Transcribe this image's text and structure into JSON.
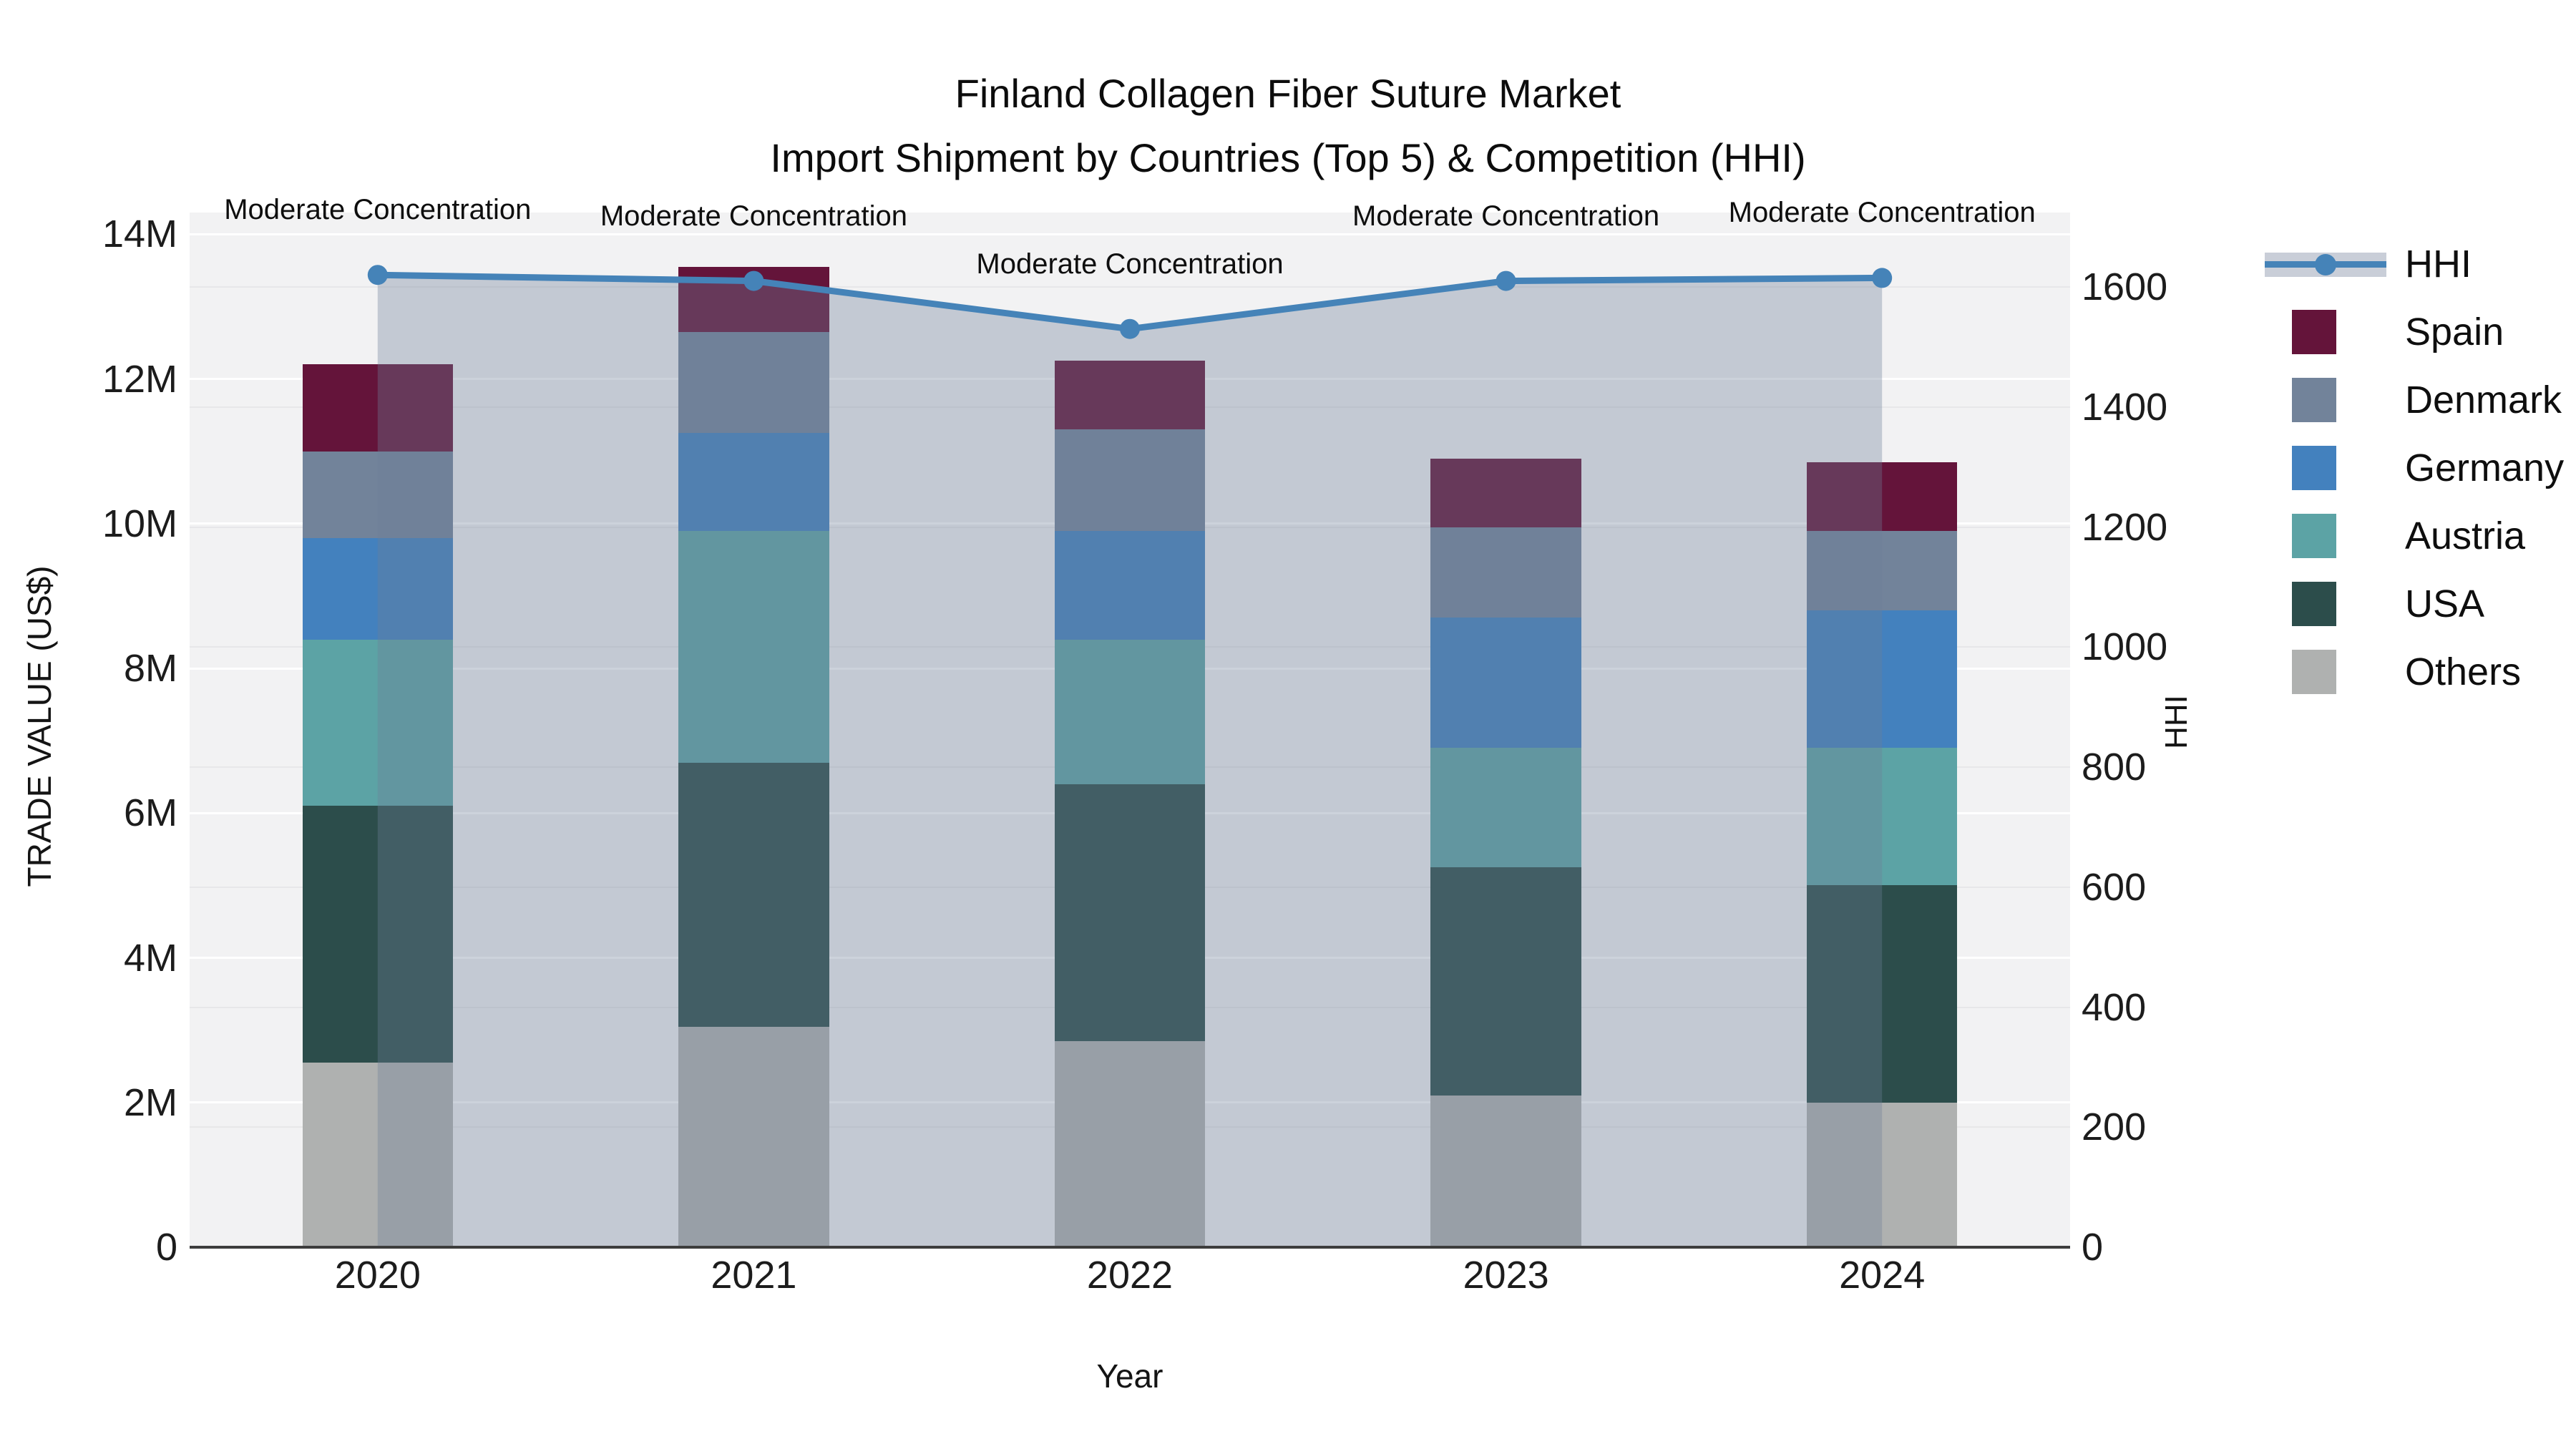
{
  "title": {
    "line1": "Finland Collagen Fiber Suture Market",
    "line2": "Import Shipment by Countries (Top 5) & Competition (HHI)"
  },
  "axes": {
    "x": {
      "title": "Year",
      "ticks": [
        "2020",
        "2021",
        "2022",
        "2023",
        "2024"
      ]
    },
    "y_left": {
      "title": "TRADE VALUE (US$)",
      "ticks": [
        {
          "label": "0",
          "value": 0
        },
        {
          "label": "2M",
          "value": 2
        },
        {
          "label": "4M",
          "value": 4
        },
        {
          "label": "6M",
          "value": 6
        },
        {
          "label": "8M",
          "value": 8
        },
        {
          "label": "10M",
          "value": 10
        },
        {
          "label": "12M",
          "value": 12
        },
        {
          "label": "14M",
          "value": 14
        }
      ]
    },
    "y_right": {
      "title": "HHI",
      "ticks": [
        {
          "label": "0",
          "value": 0
        },
        {
          "label": "200",
          "value": 200
        },
        {
          "label": "400",
          "value": 400
        },
        {
          "label": "600",
          "value": 600
        },
        {
          "label": "800",
          "value": 800
        },
        {
          "label": "1000",
          "value": 1000
        },
        {
          "label": "1200",
          "value": 1200
        },
        {
          "label": "1400",
          "value": 1400
        },
        {
          "label": "1600",
          "value": 1600
        }
      ]
    }
  },
  "legend": {
    "items": [
      {
        "id": "hhi",
        "label": "HHI",
        "kind": "line"
      },
      {
        "id": "spain",
        "label": "Spain",
        "kind": "swatch"
      },
      {
        "id": "denmark",
        "label": "Denmark",
        "kind": "swatch"
      },
      {
        "id": "germany",
        "label": "Germany",
        "kind": "swatch"
      },
      {
        "id": "austria",
        "label": "Austria",
        "kind": "swatch"
      },
      {
        "id": "usa",
        "label": "USA",
        "kind": "swatch"
      },
      {
        "id": "others",
        "label": "Others",
        "kind": "swatch"
      }
    ]
  },
  "colors": {
    "spain": "#64143A",
    "denmark": "#72839A",
    "germany": "#4381BE",
    "austria": "#5CA3A5",
    "usa": "#2C4D4B",
    "others": "#AFB1B0",
    "hhi_line": "#4583B8",
    "hhi_fill": "rgba(110,125,152,0.35)",
    "legend_band": "#C9CED8",
    "plot_bg": "#F2F2F3",
    "axis_line": "#3d3d3d"
  },
  "chart_data": {
    "type": "bar",
    "subtype": "stacked-bars-with-hhi-line",
    "title": "Finland Collagen Fiber Suture Market — Import Shipment by Countries (Top 5) & Competition (HHI)",
    "categories": [
      "2020",
      "2021",
      "2022",
      "2023",
      "2024"
    ],
    "bar_value_unit": "USD millions",
    "series": [
      {
        "name": "Others",
        "color_id": "others",
        "values": [
          2.55,
          3.05,
          2.85,
          2.1,
          2.0
        ]
      },
      {
        "name": "USA",
        "color_id": "usa",
        "values": [
          3.55,
          3.65,
          3.55,
          3.15,
          3.0
        ]
      },
      {
        "name": "Austria",
        "color_id": "austria",
        "values": [
          2.3,
          3.2,
          2.0,
          1.65,
          1.9
        ]
      },
      {
        "name": "Germany",
        "color_id": "germany",
        "values": [
          1.4,
          1.35,
          1.5,
          1.8,
          1.9
        ]
      },
      {
        "name": "Denmark",
        "color_id": "denmark",
        "values": [
          1.2,
          1.4,
          1.4,
          1.25,
          1.1
        ]
      },
      {
        "name": "Spain",
        "color_id": "spain",
        "values": [
          1.2,
          0.9,
          0.95,
          0.95,
          0.95
        ]
      }
    ],
    "bar_totals": [
      12.2,
      13.55,
      12.25,
      10.9,
      10.85
    ],
    "line": {
      "name": "HHI",
      "yaxis": "right",
      "values": [
        1620,
        1610,
        1530,
        1610,
        1615
      ]
    },
    "annotations": [
      {
        "category": "2020",
        "text": "Moderate Concentration"
      },
      {
        "category": "2021",
        "text": "Moderate Concentration"
      },
      {
        "category": "2022",
        "text": "Moderate Concentration"
      },
      {
        "category": "2023",
        "text": "Moderate Concentration"
      },
      {
        "category": "2024",
        "text": "Moderate Concentration"
      }
    ],
    "xlabel": "Year",
    "ylabel_left": "TRADE VALUE (US$)",
    "ylabel_right": "HHI",
    "ylim_left": [
      0,
      14.3
    ],
    "ylim_right": [
      0,
      1724
    ],
    "grid": true,
    "legend_position": "right"
  }
}
